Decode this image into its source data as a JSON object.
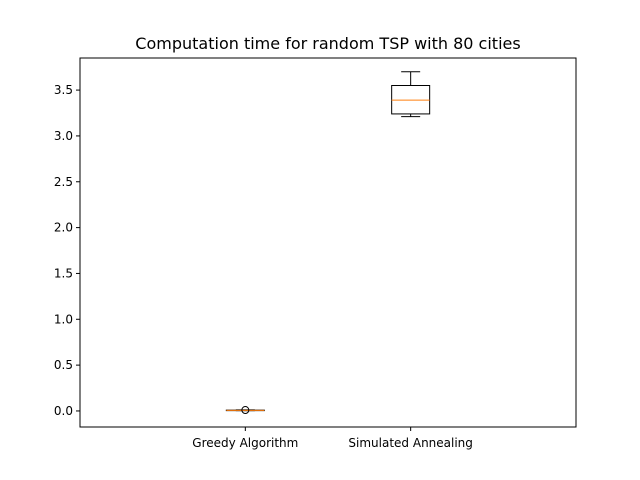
{
  "chart_data": {
    "type": "boxplot",
    "title": "Computation time for random TSP with 80 cities",
    "xlabel": "",
    "ylabel": "",
    "ylim": [
      -0.175,
      3.85
    ],
    "yticks": [
      0.0,
      0.5,
      1.0,
      1.5,
      2.0,
      2.5,
      3.0,
      3.5
    ],
    "ytick_labels": [
      "0.0",
      "0.5",
      "1.0",
      "1.5",
      "2.0",
      "2.5",
      "3.0",
      "3.5"
    ],
    "categories": [
      "Greedy Algorithm",
      "Simulated Annealing"
    ],
    "series": [
      {
        "name": "Greedy Algorithm",
        "whisker_low": 0.003,
        "q1": 0.004,
        "median": 0.006,
        "q3": 0.009,
        "whisker_high": 0.012,
        "outliers": [
          0.01
        ]
      },
      {
        "name": "Simulated Annealing",
        "whisker_low": 3.21,
        "q1": 3.24,
        "median": 3.39,
        "q3": 3.55,
        "whisker_high": 3.7,
        "outliers": []
      }
    ],
    "colors": {
      "box": "#000000",
      "median": "#ff7f0e",
      "axis": "#000000"
    }
  }
}
